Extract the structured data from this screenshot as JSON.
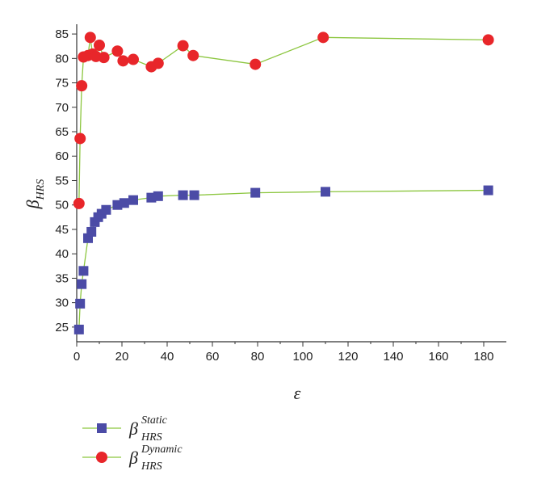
{
  "chart_data": {
    "type": "scatter",
    "xlabel": "ε",
    "ylabel": {
      "base": "β",
      "sub": "HRS"
    },
    "xlim": [
      0,
      190
    ],
    "ylim": [
      22,
      87
    ],
    "xticks": [
      0,
      20,
      40,
      60,
      80,
      100,
      120,
      140,
      160,
      180
    ],
    "yticks": [
      25,
      30,
      35,
      40,
      45,
      50,
      55,
      60,
      65,
      70,
      75,
      80,
      85
    ],
    "grid": false,
    "legend_position": "bottom-left",
    "series": [
      {
        "legend": {
          "base": "β",
          "sup": "Static",
          "sub": "HRS"
        },
        "marker": "square",
        "color": "#4b4ba6",
        "line_color": "#8cc63f",
        "points": [
          [
            1,
            24.5
          ],
          [
            1.5,
            29.8
          ],
          [
            2.2,
            33.8
          ],
          [
            3,
            36.5
          ],
          [
            5,
            43.2
          ],
          [
            6.5,
            44.5
          ],
          [
            8,
            46.5
          ],
          [
            9.5,
            47.5
          ],
          [
            11,
            48.2
          ],
          [
            13,
            49
          ],
          [
            18,
            50
          ],
          [
            21,
            50.4
          ],
          [
            25,
            51
          ],
          [
            33,
            51.5
          ],
          [
            36,
            51.8
          ],
          [
            47,
            52
          ],
          [
            52,
            52
          ],
          [
            79,
            52.5
          ],
          [
            110,
            52.7
          ],
          [
            182,
            53
          ]
        ]
      },
      {
        "legend": {
          "base": "β",
          "sup": "Dynamic",
          "sub": "HRS"
        },
        "marker": "circle",
        "color": "#e8262a",
        "line_color": "#8cc63f",
        "points": [
          [
            1,
            50.3
          ],
          [
            1.5,
            63.6
          ],
          [
            2.2,
            74.4
          ],
          [
            3,
            80.3
          ],
          [
            5,
            80.6
          ],
          [
            6,
            84.3
          ],
          [
            7,
            80.9
          ],
          [
            8.5,
            80.4
          ],
          [
            10,
            82.7
          ],
          [
            12,
            80.2
          ],
          [
            18,
            81.5
          ],
          [
            20.5,
            79.5
          ],
          [
            25,
            79.8
          ],
          [
            33,
            78.3
          ],
          [
            36,
            79
          ],
          [
            47,
            82.6
          ],
          [
            51.5,
            80.6
          ],
          [
            79,
            78.8
          ],
          [
            109,
            84.3
          ],
          [
            182,
            83.8
          ]
        ]
      }
    ]
  }
}
